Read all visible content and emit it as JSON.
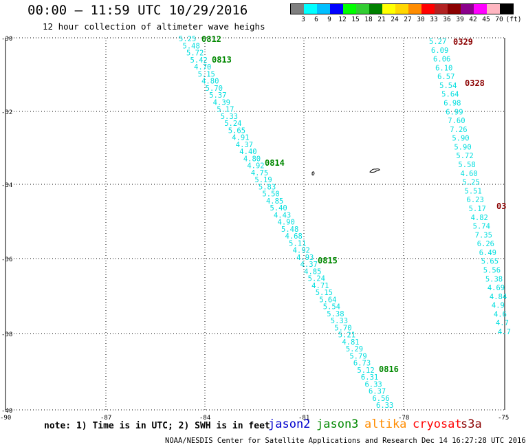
{
  "header": {
    "title": "00:00 – 11:59 UTC 10/29/2016",
    "subtitle": "12 hour collection of altimeter wave heighs"
  },
  "legend": {
    "unit": "(ft)",
    "labels": [
      "3",
      "6",
      "9",
      "12",
      "15",
      "18",
      "21",
      "24",
      "27",
      "30",
      "33",
      "36",
      "39",
      "42",
      "45",
      "70"
    ],
    "colors": [
      "#7f7f7f",
      "#00ffff",
      "#00bfff",
      "#0000ff",
      "#00ff00",
      "#32cd32",
      "#008000",
      "#ffff00",
      "#ffd700",
      "#ff8c00",
      "#ff0000",
      "#b22222",
      "#8b0000",
      "#8b008b",
      "#ff00ff",
      "#ffb6c1",
      "#000000"
    ]
  },
  "axes": {
    "lat_ticks": [
      "-30",
      "-32",
      "-34",
      "-36",
      "-38",
      "-40"
    ],
    "lon_ticks": [
      "-90",
      "-87",
      "-84",
      "-81",
      "-78",
      "-75"
    ]
  },
  "tracks": {
    "jason3": {
      "color": "#008800",
      "value_color": "#00dede",
      "values": [
        "5.25",
        "5.48",
        "5.72",
        "5.42",
        "4.70",
        "5.15",
        "4.80",
        "5.70",
        "5.37",
        "4.39",
        "5.17",
        "5.33",
        "5.24",
        "5.65",
        "4.91",
        "4.37",
        "4.40",
        "4.80",
        "4.92",
        "4.75",
        "5.19",
        "5.83",
        "5.50",
        "4.85",
        "5.40",
        "4.43",
        "4.90",
        "5.48",
        "4.68",
        "5.11",
        "4.92",
        "4.93",
        "4.37",
        "4.85",
        "5.24",
        "4.71",
        "5.15",
        "5.64",
        "5.54",
        "5.38",
        "5.33",
        "5.70",
        "5.21",
        "4.81",
        "5.29",
        "5.79",
        "6.73",
        "5.12",
        "6.31",
        "6.33",
        "6.37",
        "6.56",
        "6.33"
      ],
      "times": [
        "0812",
        "0813",
        "0814",
        "0815",
        "0816"
      ]
    },
    "s3a": {
      "color": "#8b0000",
      "values": [
        "5.27",
        "6.09",
        "6.06",
        "6.10",
        "6.57",
        "5.54",
        "5.64",
        "6.98",
        "6.99",
        "7.60",
        "7.26",
        "5.90",
        "5.90",
        "5.72",
        "5.58",
        "4.60",
        "5.25",
        "5.51",
        "6.23",
        "5.17",
        "4.82",
        "5.74",
        "7.35",
        "6.26",
        "6.49",
        "5.65",
        "5.56",
        "5.38",
        "4.69",
        "4.84",
        "4.9",
        "4.6",
        "4.7",
        "4.7"
      ],
      "times": [
        "0329",
        "0328",
        "03"
      ]
    }
  },
  "footer": {
    "note": "note: 1) Time is in UTC; 2) SWH is in feet",
    "satellites": [
      {
        "name": "jason2",
        "color": "#0000cc"
      },
      {
        "name": "jason3",
        "color": "#008800"
      },
      {
        "name": "altika",
        "color": "#ff8c00"
      },
      {
        "name": "cryosat",
        "color": "#ff0000"
      },
      {
        "name": "s3a",
        "color": "#8b0000"
      }
    ],
    "credit": "NOAA/NESDIS Center for Satellite Applications and Research   Dec 14 16:27:28 UTC 2016"
  }
}
